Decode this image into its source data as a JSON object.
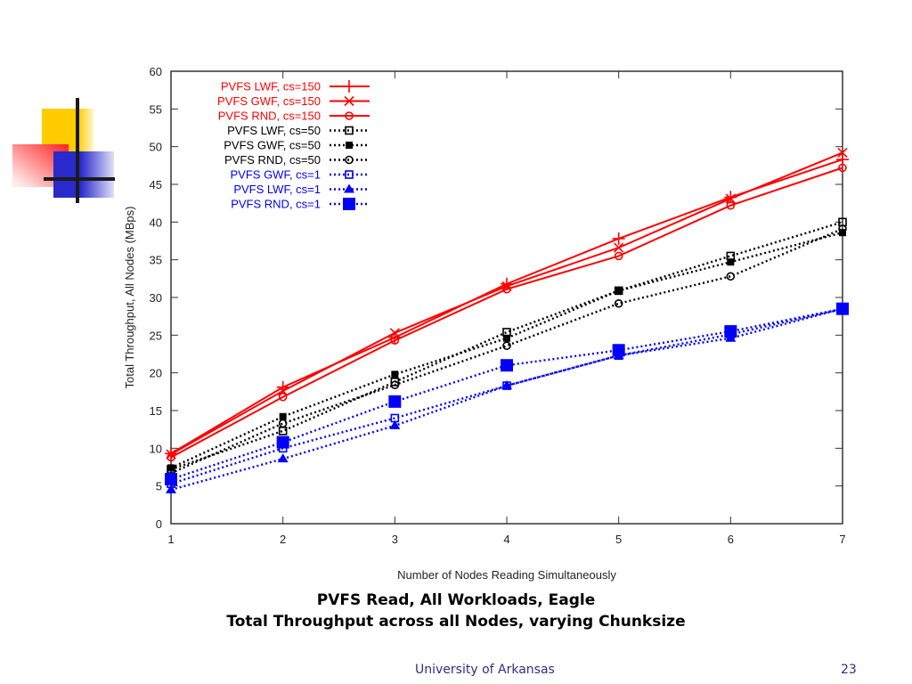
{
  "slide": {
    "title_line1": "PVFS Read, All Workloads, Eagle",
    "title_line2": "Total Throughput across all Nodes, varying Chunksize",
    "footer_org": "University of Arkansas",
    "page_number": "23",
    "logo_icon": "decorative-color-blocks-logo"
  },
  "chart_data": {
    "type": "line",
    "title": "",
    "xlabel": "Number of Nodes Reading Simultaneously",
    "ylabel": "Total Throughput, All Nodes (MBps)",
    "x": [
      1,
      2,
      3,
      4,
      5,
      6,
      7
    ],
    "xlim": [
      1,
      7
    ],
    "ylim": [
      0,
      60
    ],
    "xticks": [
      "1",
      "2",
      "3",
      "4",
      "5",
      "6",
      "7"
    ],
    "yticks": [
      "0",
      "5",
      "10",
      "15",
      "20",
      "25",
      "30",
      "35",
      "40",
      "45",
      "50",
      "55",
      "60"
    ],
    "grid": false,
    "legend_position": "top-left",
    "series": [
      {
        "name": "PVFS LWF, cs=150",
        "color": "#ff0000",
        "style": "solid",
        "marker": "plus",
        "values": [
          9.3,
          18.1,
          24.7,
          31.8,
          37.8,
          43.3,
          48.3
        ]
      },
      {
        "name": "PVFS GWF, cs=150",
        "color": "#ff0000",
        "style": "solid",
        "marker": "x",
        "values": [
          9.2,
          17.6,
          25.3,
          31.5,
          36.6,
          43.1,
          49.2
        ]
      },
      {
        "name": "PVFS RND, cs=150",
        "color": "#ff0000",
        "style": "solid",
        "marker": "circle",
        "values": [
          8.8,
          16.8,
          24.3,
          31.1,
          35.5,
          42.2,
          47.2
        ]
      },
      {
        "name": "PVFS LWF, cs=50",
        "color": "#000000",
        "style": "dotted",
        "marker": "open-square",
        "values": [
          7.2,
          12.3,
          18.8,
          25.4,
          30.9,
          35.5,
          40.0
        ]
      },
      {
        "name": "PVFS GWF, cs=50",
        "color": "#000000",
        "style": "dotted",
        "marker": "filled-square",
        "values": [
          7.4,
          14.2,
          19.8,
          24.6,
          30.9,
          34.7,
          38.6
        ]
      },
      {
        "name": "PVFS RND, cs=50",
        "color": "#000000",
        "style": "dotted",
        "marker": "circle",
        "values": [
          6.7,
          13.3,
          18.4,
          23.6,
          29.2,
          32.8,
          39.1
        ]
      },
      {
        "name": "PVFS GWF, cs=1",
        "color": "#0000ff",
        "style": "dotted",
        "marker": "open-square",
        "values": [
          5.3,
          10.0,
          14.0,
          18.3,
          22.3,
          25.1,
          28.5
        ]
      },
      {
        "name": "PVFS LWF, cs=1",
        "color": "#0000ff",
        "style": "dotted",
        "marker": "triangle",
        "values": [
          4.5,
          8.6,
          13.0,
          18.3,
          22.3,
          24.6,
          28.5
        ]
      },
      {
        "name": "PVFS RND, cs=1",
        "color": "#0000ff",
        "style": "dotted",
        "marker": "big-filled-square",
        "values": [
          5.9,
          10.8,
          16.2,
          21.0,
          23.0,
          25.5,
          28.5
        ]
      }
    ]
  }
}
